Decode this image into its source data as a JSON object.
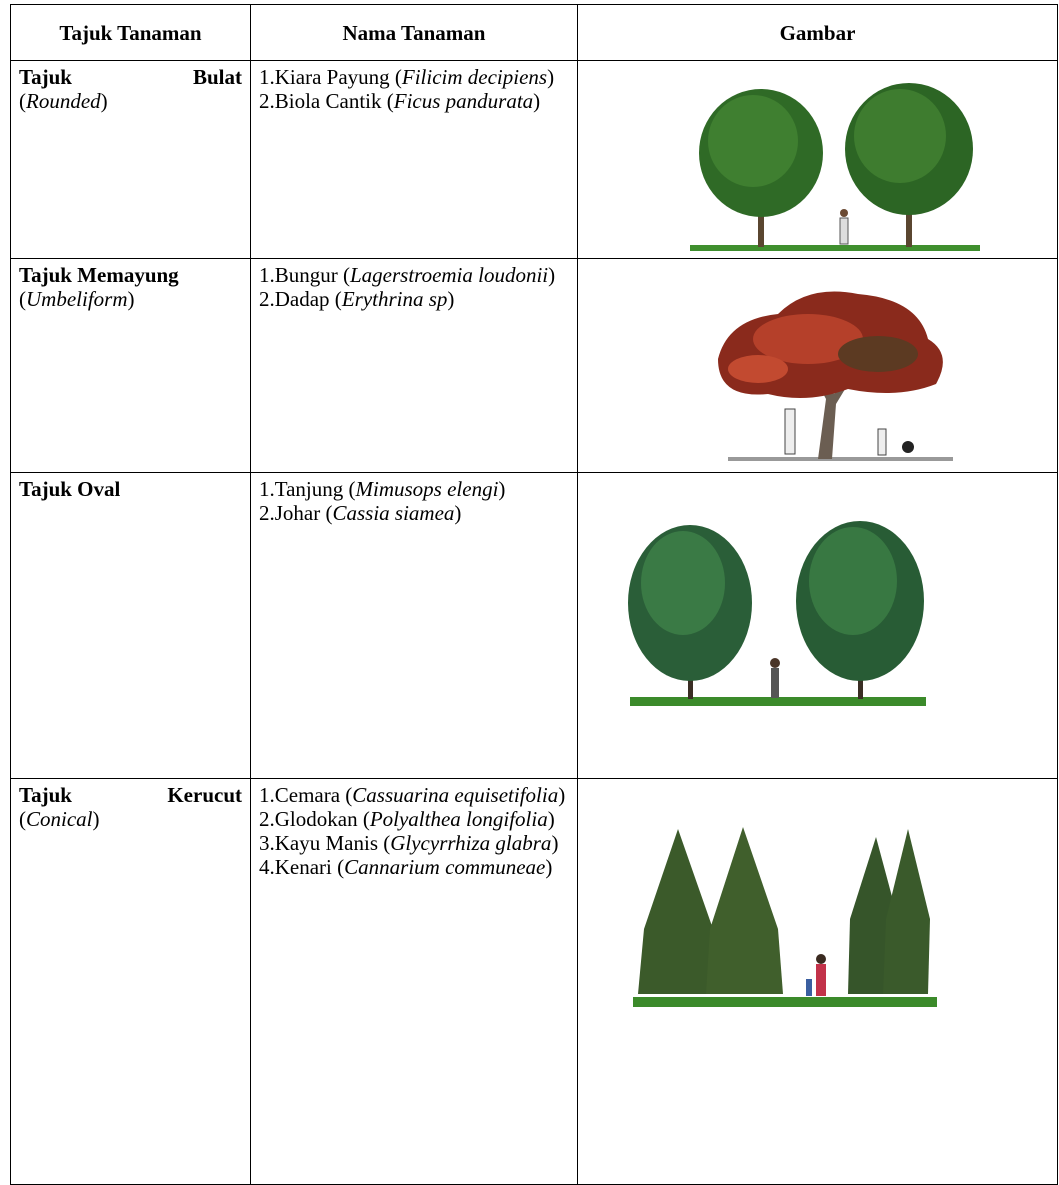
{
  "table": {
    "header": [
      "Tajuk Tanaman",
      "Nama Tanaman",
      "Gambar"
    ],
    "rows": [
      {
        "title": "Tajuk Bulat",
        "en_open": "(",
        "en": "Rounded",
        "en_close": ")",
        "plants": [
          {
            "num": "1.",
            "name": "Kiara Payung (",
            "latin": "Filicim decipiens",
            "close": ")"
          },
          {
            "num": "2.",
            "name": "Biola Cantik (",
            "latin": "Ficus pandurata",
            "close": ")"
          }
        ]
      },
      {
        "title": "Tajuk Memayung",
        "en_open": "(",
        "en": "Umbeliform",
        "en_close": ")",
        "plants": [
          {
            "num": "1.",
            "name": "Bungur (",
            "latin": "Lagerstroemia loudonii",
            "close": ")"
          },
          {
            "num": "2.",
            "name": "Dadap (",
            "latin": "Erythrina sp",
            "close": ")"
          }
        ]
      },
      {
        "title": "Tajuk Oval",
        "plants": [
          {
            "num": "1.",
            "name": "Tanjung (",
            "latin": "Mimusops elengi",
            "close": ")"
          },
          {
            "num": "2.",
            "name": "Johar (",
            "latin": "Cassia siamea",
            "close": ")"
          }
        ]
      },
      {
        "title": "Tajuk Kerucut",
        "en_open": "(",
        "en": "Conical",
        "en_close": ")",
        "plants": [
          {
            "num": "1.",
            "name": "Cemara (",
            "latin": "Cassuarina equisetifolia",
            "close": ")"
          },
          {
            "num": "2.",
            "name": "Glodokan (",
            "latin": "Polyalthea longifolia",
            "close": ")"
          },
          {
            "num": "3.",
            "name": "Kayu Manis (",
            "latin": "Glycyrrhiza glabra",
            "close": ")"
          },
          {
            "num": "4.",
            "name": "Kenari (",
            "latin": "Cannarium communeae",
            "close": ")"
          }
        ]
      }
    ]
  }
}
